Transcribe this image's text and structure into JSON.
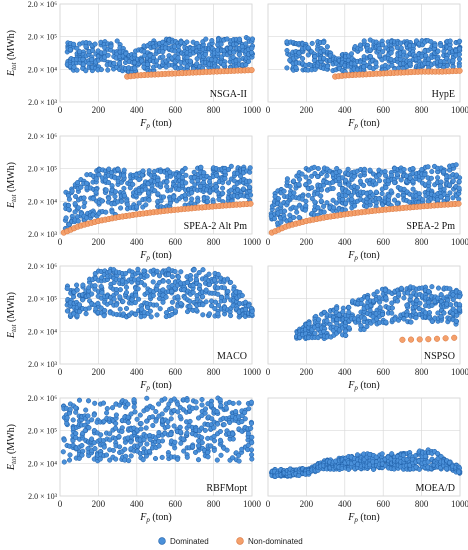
{
  "figure": {
    "x_axis_title": "F",
    "x_axis_subscript": "p",
    "x_axis_unit": "(ton)",
    "y_axis_title": "E",
    "y_axis_subscript": "tot",
    "y_axis_unit": "(MWh)"
  },
  "legend": {
    "dominated_label": "Dominated",
    "nondominated_label": "Non-dominated"
  },
  "colors": {
    "dominated": "#4A90D9",
    "dominated_edge": "#1F5FA8",
    "nondominated": "#F4A06B",
    "nondominated_edge": "#D9723A",
    "grid": "#D9D9D9"
  },
  "chart_data": [
    {
      "type": "scatter",
      "title": "NSGA-II",
      "xlim": [
        0,
        1000
      ],
      "ylim": [
        2000,
        2000000
      ],
      "yscale": "log",
      "x_ticks": [
        "0",
        "200",
        "400",
        "600",
        "800",
        "1000"
      ],
      "y_ticks": [
        "2.0 × 10³",
        "2.0 × 10⁴",
        "2.0 × 10⁵",
        "2.0 × 10⁶"
      ],
      "series": [
        {
          "name": "Dominated",
          "x": [
            40,
            120,
            200,
            300,
            350,
            500,
            700,
            900,
            1000
          ],
          "y": [
            130000,
            130000,
            140000,
            150000,
            60000,
            170000,
            175000,
            180000,
            230000
          ]
        },
        {
          "name": "Non-dominated",
          "x": [
            350,
            400,
            500,
            600,
            700,
            800,
            900,
            1000
          ],
          "y": [
            12000,
            13000,
            14000,
            15000,
            16000,
            17000,
            18000,
            19000
          ]
        }
      ]
    },
    {
      "type": "scatter",
      "title": "HypE",
      "xlim": [
        0,
        1000
      ],
      "ylim": [
        2000,
        2000000
      ],
      "yscale": "log",
      "x_ticks": [
        "0",
        "200",
        "400",
        "600",
        "800",
        "1000"
      ],
      "y_ticks": [
        "2.0 × 10³",
        "2.0 × 10⁴",
        "2.0 × 10⁵",
        "2.0 × 10⁶"
      ],
      "series": [
        {
          "name": "Dominated",
          "x": [
            100,
            200,
            300,
            350,
            500,
            700,
            900,
            1000
          ],
          "y": [
            150000,
            140000,
            150000,
            40000,
            160000,
            160000,
            150000,
            150000
          ]
        },
        {
          "name": "Non-dominated",
          "x": [
            350,
            400,
            500,
            600,
            700,
            800,
            900,
            1000
          ],
          "y": [
            12000,
            13000,
            14000,
            15000,
            16000,
            17000,
            17000,
            18000
          ]
        }
      ]
    },
    {
      "type": "scatter",
      "title": "SPEA-2 Alt Pm",
      "xlim": [
        0,
        1000
      ],
      "ylim": [
        2000,
        2000000
      ],
      "yscale": "log",
      "x_ticks": [
        "0",
        "200",
        "400",
        "600",
        "800",
        "1000"
      ],
      "y_ticks": [
        "2.0 × 10³",
        "2.0 × 10⁴",
        "2.0 × 10⁵",
        "2.0 × 10⁶"
      ],
      "series": [
        {
          "name": "Dominated",
          "x": [
            30,
            100,
            200,
            400,
            600,
            800,
            1000
          ],
          "y": [
            40000,
            100000,
            210000,
            190000,
            210000,
            230000,
            250000
          ]
        },
        {
          "name": "Non-dominated",
          "x": [
            20,
            100,
            200,
            300,
            400,
            500,
            600,
            700,
            800,
            900,
            1000
          ],
          "y": [
            2200,
            3500,
            5000,
            6500,
            8000,
            9500,
            11000,
            12500,
            14000,
            15500,
            17000
          ]
        }
      ]
    },
    {
      "type": "scatter",
      "title": "SPEA-2 Pm",
      "xlim": [
        0,
        1000
      ],
      "ylim": [
        2000,
        2000000
      ],
      "yscale": "log",
      "x_ticks": [
        "0",
        "200",
        "400",
        "600",
        "800",
        "1000"
      ],
      "y_ticks": [
        "2.0 × 10³",
        "2.0 × 10⁴",
        "2.0 × 10⁵",
        "2.0 × 10⁶"
      ],
      "series": [
        {
          "name": "Dominated",
          "x": [
            20,
            100,
            200,
            400,
            600,
            800,
            1000
          ],
          "y": [
            30000,
            100000,
            230000,
            200000,
            210000,
            220000,
            270000
          ]
        },
        {
          "name": "Non-dominated",
          "x": [
            20,
            100,
            200,
            300,
            400,
            500,
            600,
            700,
            800,
            900,
            1000
          ],
          "y": [
            2200,
            3500,
            5000,
            6500,
            8000,
            9500,
            11000,
            12500,
            14000,
            15500,
            17000
          ]
        }
      ]
    },
    {
      "type": "scatter",
      "title": "MACO",
      "xlim": [
        0,
        1000
      ],
      "ylim": [
        2000,
        2000000
      ],
      "yscale": "log",
      "x_ticks": [
        "0",
        "200",
        "400",
        "600",
        "800",
        "1000"
      ],
      "y_ticks": [
        "2.0 × 10³",
        "2.0 × 10⁴",
        "2.0 × 10⁵",
        "2.0 × 10⁶"
      ],
      "series": [
        {
          "name": "Dominated",
          "x": [
            40,
            150,
            200,
            500,
            800,
            900,
            1000
          ],
          "y": [
            550000,
            800000,
            1600000,
            1600000,
            1600000,
            700000,
            100000
          ]
        }
      ]
    },
    {
      "type": "scatter",
      "title": "NSPSO",
      "xlim": [
        0,
        1000
      ],
      "ylim": [
        2000,
        2000000
      ],
      "yscale": "log",
      "x_ticks": [
        "0",
        "200",
        "400",
        "600",
        "800",
        "1000"
      ],
      "y_ticks": [
        "2.0 × 10³",
        "2.0 × 10⁴",
        "2.0 × 10⁵",
        "2.0 × 10⁶"
      ],
      "series": [
        {
          "name": "Dominated",
          "x": [
            150,
            250,
            400,
            600,
            800,
            1000
          ],
          "y": [
            20000,
            60000,
            150000,
            400000,
            500000,
            400000
          ]
        },
        {
          "name": "Non-dominated",
          "x": [
            700,
            850,
            900,
            1000
          ],
          "y": [
            11000,
            11500,
            12000,
            13000
          ]
        }
      ]
    },
    {
      "type": "scatter",
      "title": "RBFMopt",
      "xlim": [
        0,
        1000
      ],
      "ylim": [
        2000,
        2000000
      ],
      "yscale": "log",
      "x_ticks": [
        "0",
        "200",
        "400",
        "600",
        "800",
        "1000"
      ],
      "y_ticks": [
        "2.0 × 10³",
        "2.0 × 10⁴",
        "2.0 × 10⁵",
        "2.0 × 10⁶"
      ],
      "series": [
        {
          "name": "Dominated",
          "x": [
            20,
            100,
            200,
            400,
            600,
            800,
            1000
          ],
          "y": [
            1500000,
            1800000,
            2000000,
            2000000,
            2000000,
            2000000,
            1800000
          ]
        }
      ]
    },
    {
      "type": "scatter",
      "title": "MOEA/D",
      "xlim": [
        0,
        1000
      ],
      "ylim": [
        2000,
        2000000
      ],
      "yscale": "log",
      "x_ticks": [
        "0",
        "200",
        "400",
        "600",
        "800",
        "1000"
      ],
      "y_ticks": [
        "2.0 × 10³",
        "2.0 × 10⁴",
        "2.0 × 10⁵",
        "2.0 × 10⁶"
      ],
      "series": [
        {
          "name": "Dominated",
          "x": [
            20,
            200,
            300,
            500,
            700,
            850,
            1000
          ],
          "y": [
            13000,
            14000,
            25000,
            40000,
            40000,
            55000,
            15000
          ]
        }
      ]
    }
  ]
}
